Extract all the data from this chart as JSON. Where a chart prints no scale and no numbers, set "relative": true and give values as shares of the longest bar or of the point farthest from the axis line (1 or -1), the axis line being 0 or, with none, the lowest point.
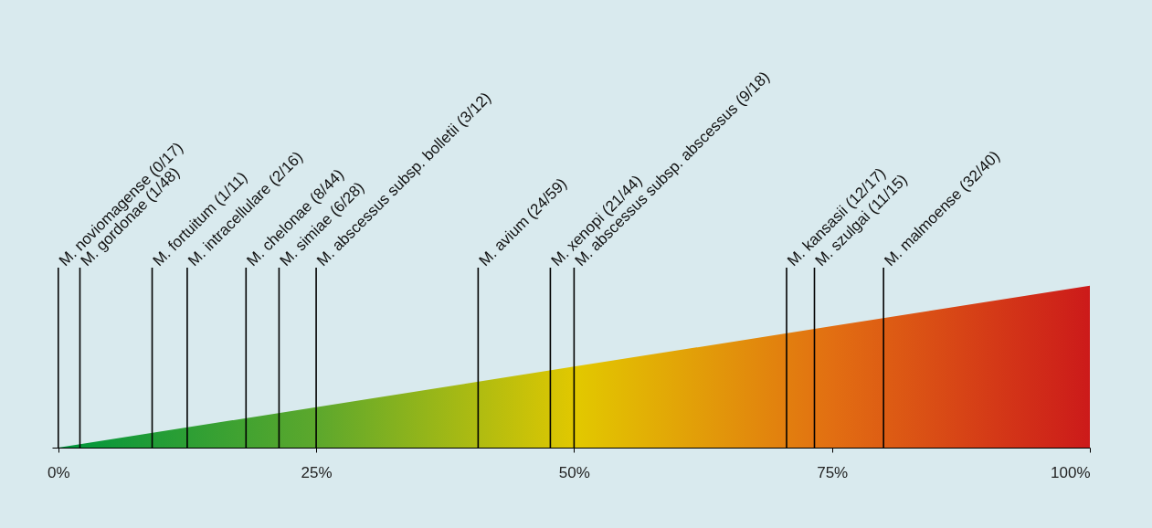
{
  "chart_data": {
    "type": "area",
    "relative": true,
    "x": [
      0,
      25,
      50,
      75,
      100
    ],
    "values": [
      0,
      0.25,
      0.5,
      0.75,
      1
    ],
    "colors": [
      "#00963c",
      "#5ea82c",
      "#e2c800",
      "#e26e12",
      "#cc1a1a"
    ],
    "xlim": [
      -0.6,
      100
    ],
    "xticks": [
      {
        "value": 0,
        "label": "0%"
      },
      {
        "value": 25,
        "label": "25%"
      },
      {
        "value": 50,
        "label": "50%"
      },
      {
        "value": 75,
        "label": "75%"
      },
      {
        "value": 100,
        "label": "100%"
      }
    ],
    "ref_lines": [
      {
        "axis": "x",
        "value": 0,
        "label": "M. noviomagense (0/17)"
      },
      {
        "axis": "x",
        "value": 2.1,
        "label": "M. gordonae (1/48)"
      },
      {
        "axis": "x",
        "value": 9.1,
        "label": "M. fortuitum (1/11)"
      },
      {
        "axis": "x",
        "value": 12.5,
        "label": "M. intracellulare (2/16)"
      },
      {
        "axis": "x",
        "value": 18.2,
        "label": "M. chelonae (8/44)"
      },
      {
        "axis": "x",
        "value": 21.4,
        "label": "M. simiae (6/28)"
      },
      {
        "axis": "x",
        "value": 25,
        "label": "M. abscessus subsp. bolletii (3/12)"
      },
      {
        "axis": "x",
        "value": 40.7,
        "label": "M. avium (24/59)"
      },
      {
        "axis": "x",
        "value": 47.7,
        "label": "M. xenopi (21/44)"
      },
      {
        "axis": "x",
        "value": 50,
        "label": "M. abscessus subsp. abscessus (9/18)"
      },
      {
        "axis": "x",
        "value": 70.6,
        "label": "M. kansasii (12/17)"
      },
      {
        "axis": "x",
        "value": 73.3,
        "label": "M. szulgai (11/15)"
      },
      {
        "axis": "x",
        "value": 80,
        "label": "M. malmoense (32/40)"
      }
    ],
    "grid": false
  }
}
